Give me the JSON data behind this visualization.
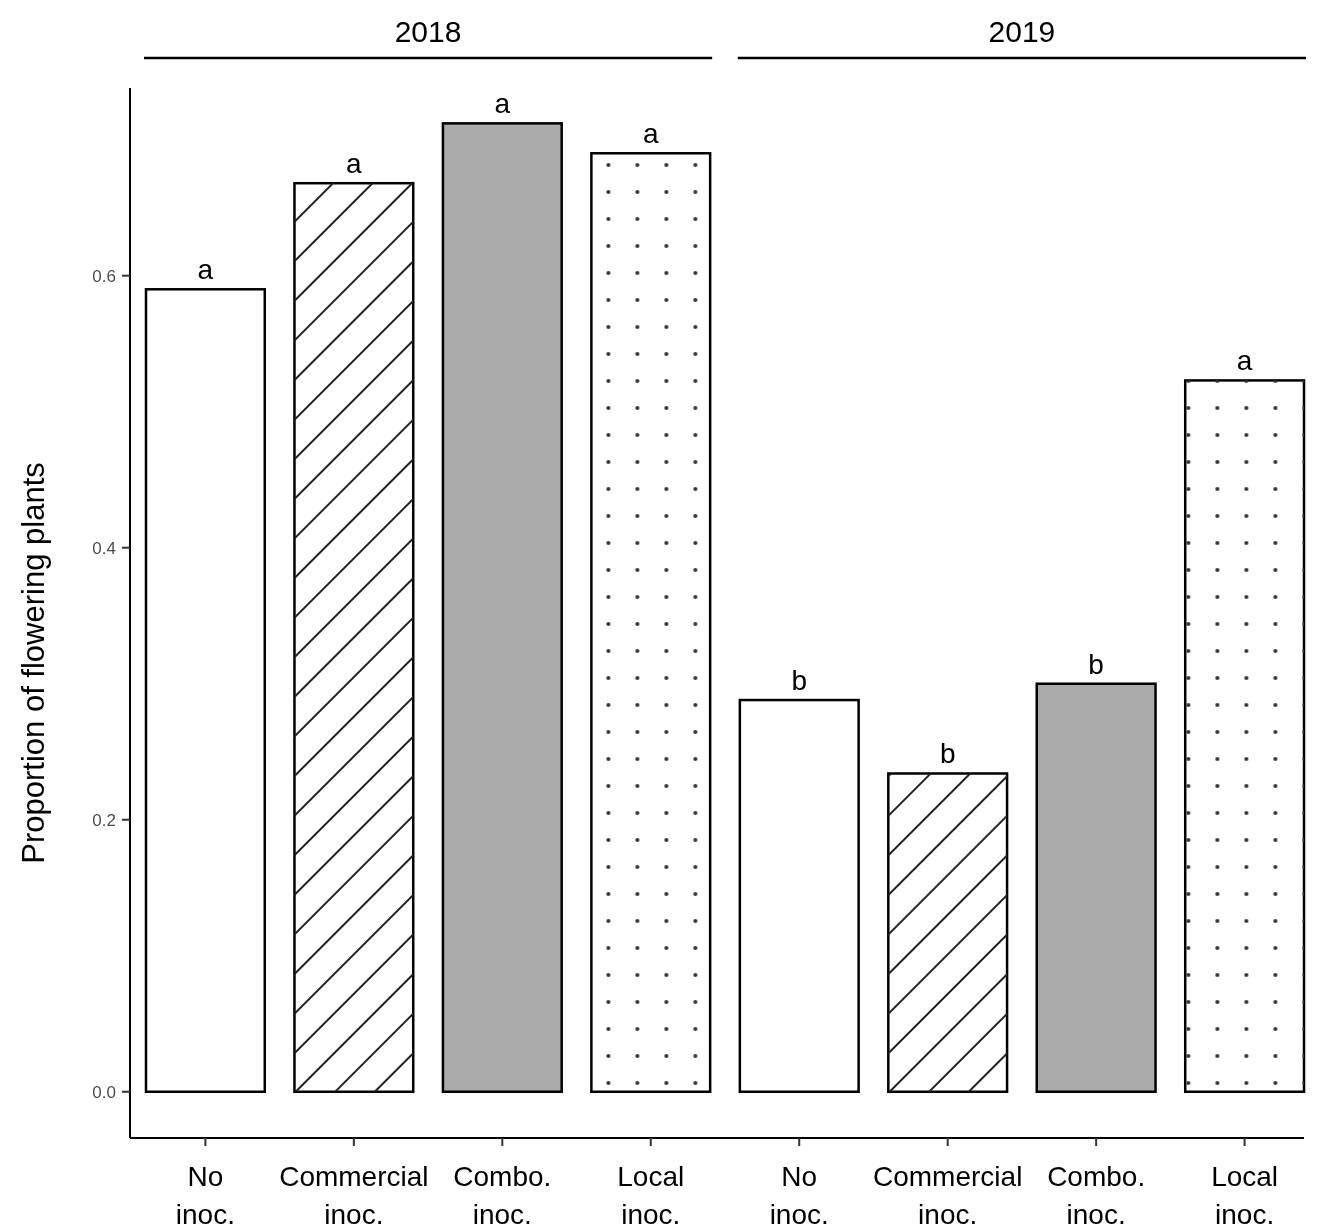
{
  "chart_data": {
    "type": "bar",
    "ylabel": "Proportion of flowering plants",
    "categories": [
      "No inoc.",
      "Commercial inoc.",
      "Combo. inoc.",
      "Local inoc.",
      "No inoc.",
      "Commercial inoc.",
      "Combo. inoc.",
      "Local inoc."
    ],
    "values": [
      0.59,
      0.668,
      0.712,
      0.69,
      0.288,
      0.234,
      0.3,
      0.523
    ],
    "colors": [
      "#ffffff",
      "#ffffff",
      "#aaaaaa",
      "#ffffff",
      "#ffffff",
      "#ffffff",
      "#aaaaaa",
      "#ffffff"
    ],
    "value_labels": [
      "a",
      "a",
      "a",
      "a",
      "b",
      "b",
      "b",
      "a"
    ],
    "annotations": [
      "2018",
      "2019"
    ],
    "ylim": [
      -0.034,
      0.738
    ],
    "yticks": [
      {
        "value": 0,
        "label": "0.0"
      },
      {
        "value": 0.2,
        "label": "0.2"
      },
      {
        "value": 0.4,
        "label": "0.4"
      },
      {
        "value": 0.6,
        "label": "0.6"
      }
    ],
    "grid": false
  }
}
